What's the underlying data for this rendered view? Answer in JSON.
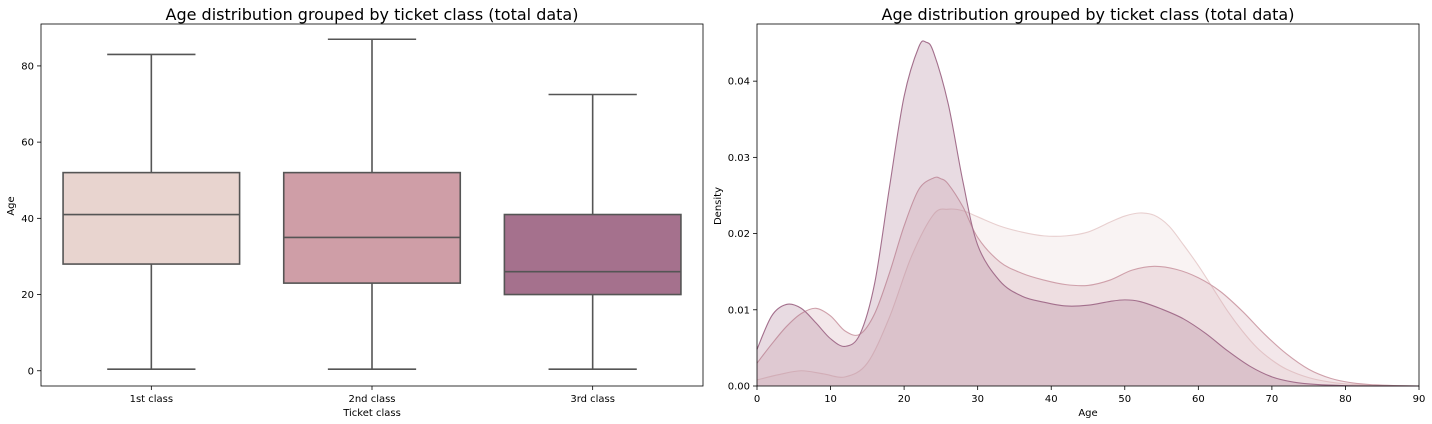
{
  "chart_data": [
    {
      "type": "box",
      "title": "Age distribution grouped by ticket class (total data)",
      "xlabel": "Ticket class",
      "ylabel": "Age",
      "ylim": [
        -4,
        91
      ],
      "yticks": [
        0,
        20,
        40,
        60,
        80
      ],
      "categories": [
        "1st class",
        "2nd class",
        "3rd class"
      ],
      "colors": [
        "#e8d4cf",
        "#cf9ea7",
        "#a5718d"
      ],
      "boxes": [
        {
          "category": "1st class",
          "min": 0.4,
          "q1": 28,
          "median": 41,
          "q3": 52,
          "max": 83
        },
        {
          "category": "2nd class",
          "min": 0.4,
          "q1": 23,
          "median": 35,
          "q3": 52,
          "max": 87
        },
        {
          "category": "3rd class",
          "min": 0.4,
          "q1": 20,
          "median": 26,
          "q3": 41,
          "max": 72.5
        }
      ]
    },
    {
      "type": "area",
      "title": "Age distribution grouped by ticket class (total data)",
      "xlabel": "Age",
      "ylabel": "Density",
      "xlim": [
        0,
        90
      ],
      "ylim": [
        0,
        0.0475
      ],
      "xticks": [
        0,
        10,
        20,
        30,
        40,
        50,
        60,
        70,
        80,
        90
      ],
      "yticks": [
        "0.00",
        "0.01",
        "0.02",
        "0.03",
        "0.04"
      ],
      "series": [
        {
          "color": "#e8cfcf",
          "x": [
            0,
            3,
            6,
            9,
            12,
            15,
            18,
            21,
            24,
            26,
            28,
            30,
            33,
            36,
            39,
            42,
            45,
            48,
            50,
            52,
            54,
            56,
            58,
            60,
            62,
            64,
            66,
            68,
            70,
            72,
            75,
            78,
            81,
            84,
            87,
            90
          ],
          "y": [
            0.0008,
            0.0015,
            0.002,
            0.0016,
            0.0012,
            0.003,
            0.009,
            0.017,
            0.0225,
            0.0232,
            0.023,
            0.0222,
            0.021,
            0.0202,
            0.0197,
            0.0197,
            0.0202,
            0.0215,
            0.0223,
            0.0227,
            0.0224,
            0.021,
            0.0185,
            0.0158,
            0.0128,
            0.0098,
            0.0072,
            0.005,
            0.0034,
            0.0022,
            0.0011,
            0.0005,
            0.0002,
            0.0001,
            3e-05,
            0
          ]
        },
        {
          "color": "#cfa0aa",
          "x": [
            0,
            2,
            4,
            6,
            8,
            10,
            12,
            14,
            16,
            18,
            20,
            22,
            24,
            25,
            26,
            28,
            30,
            33,
            36,
            39,
            42,
            45,
            48,
            51,
            54,
            57,
            60,
            63,
            66,
            69,
            72,
            75,
            78,
            81,
            84,
            87,
            90
          ],
          "y": [
            0.003,
            0.0055,
            0.0078,
            0.0095,
            0.0102,
            0.0092,
            0.0072,
            0.0068,
            0.0095,
            0.0148,
            0.021,
            0.0258,
            0.0273,
            0.0272,
            0.0265,
            0.0235,
            0.0195,
            0.0163,
            0.0148,
            0.0139,
            0.0133,
            0.0132,
            0.0139,
            0.0152,
            0.0157,
            0.0153,
            0.0142,
            0.0124,
            0.0098,
            0.0068,
            0.0042,
            0.0022,
            0.001,
            0.0004,
            0.00015,
            5e-05,
            0
          ]
        },
        {
          "color": "#a36f8c",
          "x": [
            0,
            2,
            4,
            6,
            8,
            10,
            12,
            14,
            16,
            18,
            20,
            22,
            23,
            24,
            26,
            28,
            30,
            33,
            36,
            39,
            42,
            45,
            48,
            50,
            52,
            55,
            58,
            61,
            64,
            67,
            70,
            73,
            76,
            80,
            85,
            90
          ],
          "y": [
            0.0048,
            0.0092,
            0.0107,
            0.0102,
            0.0083,
            0.0062,
            0.0052,
            0.0068,
            0.0135,
            0.026,
            0.038,
            0.0445,
            0.0451,
            0.0438,
            0.037,
            0.0268,
            0.0185,
            0.0138,
            0.0118,
            0.011,
            0.0105,
            0.0106,
            0.0111,
            0.0113,
            0.0111,
            0.0101,
            0.0088,
            0.0069,
            0.0046,
            0.0026,
            0.0012,
            0.0005,
            0.0002,
            5e-05,
            1e-05,
            0
          ]
        }
      ]
    }
  ]
}
